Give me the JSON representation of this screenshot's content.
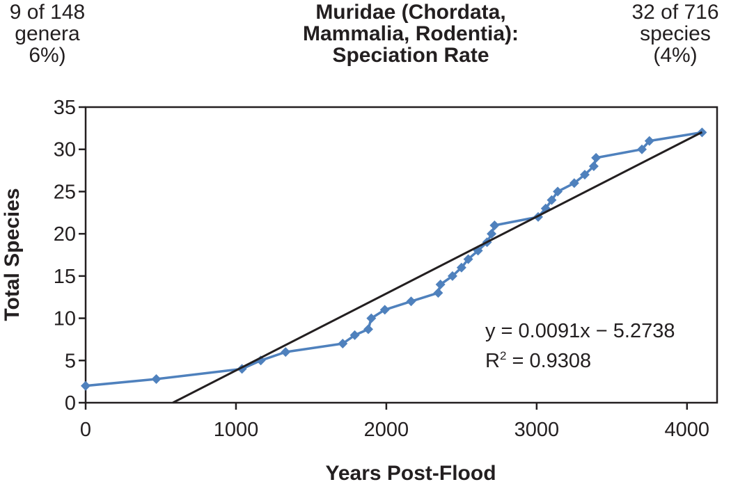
{
  "notes": {
    "left": [
      "9 of 148",
      "genera",
      "6%)"
    ],
    "right": [
      "32 of 716",
      "species",
      "(4%)"
    ]
  },
  "chart_data": {
    "type": "scatter",
    "title": [
      "Muridae (Chordata,",
      "Mammalia, Rodentia):",
      "Speciation Rate"
    ],
    "xlabel": "Years Post-Flood",
    "ylabel": "Total Species",
    "xlim": [
      0,
      4200
    ],
    "ylim": [
      0,
      35
    ],
    "xticks": [
      0,
      1000,
      2000,
      3000,
      4000
    ],
    "yticks": [
      0,
      5,
      10,
      15,
      20,
      25,
      30,
      35
    ],
    "grid": false,
    "series": [
      {
        "color": "#4f81bd",
        "marker": "diamond",
        "connected": true,
        "points": [
          [
            0,
            2
          ],
          [
            470,
            2.8
          ],
          [
            1040,
            4
          ],
          [
            1165,
            5
          ],
          [
            1330,
            6
          ],
          [
            1710,
            7
          ],
          [
            1790,
            8
          ],
          [
            1880,
            8.7
          ],
          [
            1900,
            10
          ],
          [
            1990,
            11
          ],
          [
            2165,
            12
          ],
          [
            2345,
            13
          ],
          [
            2360,
            14
          ],
          [
            2440,
            15
          ],
          [
            2500,
            16
          ],
          [
            2545,
            17
          ],
          [
            2610,
            18
          ],
          [
            2670,
            19
          ],
          [
            2700,
            20
          ],
          [
            2720,
            21
          ],
          [
            3010,
            22
          ],
          [
            3060,
            23
          ],
          [
            3100,
            24
          ],
          [
            3140,
            25
          ],
          [
            3250,
            26
          ],
          [
            3320,
            27
          ],
          [
            3380,
            28
          ],
          [
            3395,
            29
          ],
          [
            3700,
            30
          ],
          [
            3750,
            31
          ],
          [
            4100,
            32
          ]
        ]
      }
    ],
    "trendline": {
      "type": "linear",
      "slope": 0.0091,
      "intercept": -5.2738,
      "x_range": [
        580,
        4100
      ],
      "color": "#231f20",
      "equation": "y = 0.0091x − 5.2738",
      "r2_label": "R",
      "r2_sup": "2",
      "r2_value": " = 0.9308"
    }
  }
}
